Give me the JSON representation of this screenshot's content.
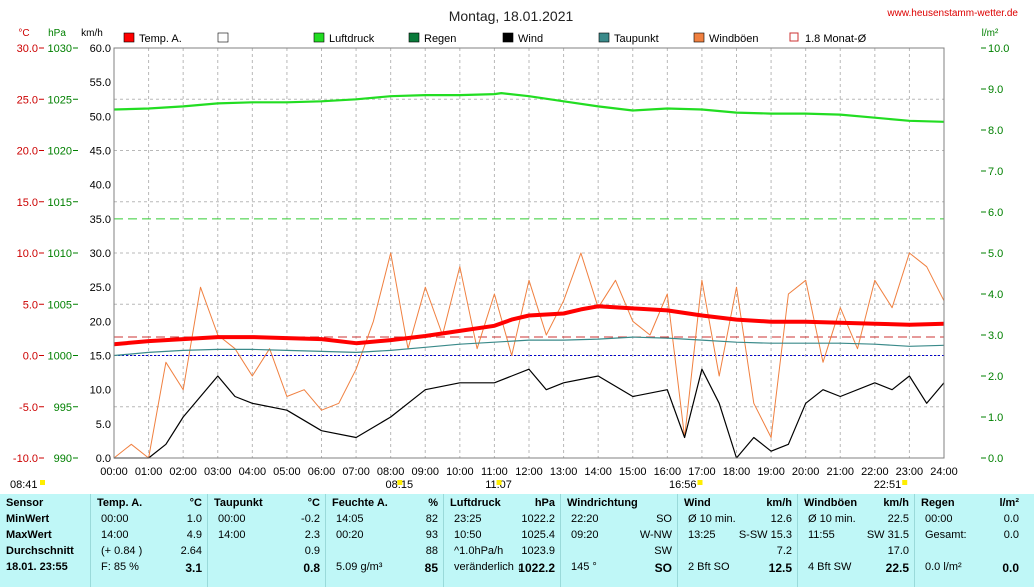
{
  "title": "Montag, 18.01.2021",
  "website": "www.heusenstamm-wetter.de",
  "colors": {
    "temp": "#ff0000",
    "pressure": "#22dd22",
    "rain": "#0a7a3a",
    "wind": "#000000",
    "dewpoint": "#3a8a8a",
    "gust": "#f08040",
    "avg": "#cc3333",
    "humidity": "#ffffff",
    "left_axis": "#cc0000",
    "green_axis": "#008000",
    "table_bg": "#bff7f7"
  },
  "axes": {
    "temp_unit": "°C",
    "pressure_unit": "hPa",
    "wind_unit": "km/h",
    "rain_unit": "l/m²",
    "temp_ticks": [
      "30.0",
      "25.0",
      "20.0",
      "15.0",
      "10.0",
      "5.0",
      "0.0",
      "-5.0",
      "-10.0"
    ],
    "pressure_ticks": [
      "1030",
      "1025",
      "1020",
      "1015",
      "1010",
      "1005",
      "1000",
      "995",
      "990"
    ],
    "wind_ticks": [
      "60.0",
      "55.0",
      "50.0",
      "45.0",
      "40.0",
      "35.0",
      "30.0",
      "25.0",
      "20.0",
      "15.0",
      "10.0",
      "5.0",
      "0.0"
    ],
    "rain_ticks": [
      "10.0",
      "9.0",
      "8.0",
      "7.0",
      "6.0",
      "5.0",
      "4.0",
      "3.0",
      "2.0",
      "1.0",
      "0.0"
    ],
    "time_ticks": [
      "00:00",
      "01:00",
      "02:00",
      "03:00",
      "04:00",
      "05:00",
      "06:00",
      "07:00",
      "08:00",
      "09:00",
      "10:00",
      "11:00",
      "12:00",
      "13:00",
      "14:00",
      "15:00",
      "16:00",
      "17:00",
      "18:00",
      "19:00",
      "20:00",
      "21:00",
      "22:00",
      "23:00",
      "24:00"
    ]
  },
  "time_markers": [
    {
      "label": "08:41",
      "hour": 0.0
    },
    {
      "label": "08:15",
      "hour": 8.25
    },
    {
      "label": "11:07",
      "hour": 11.12
    },
    {
      "label": "16:56",
      "hour": 16.93
    },
    {
      "label": "22:51",
      "hour": 22.85
    }
  ],
  "legend": [
    {
      "label": "Temp. A.",
      "key": "temp"
    },
    {
      "label": "",
      "key": "humidity"
    },
    {
      "label": "Luftdruck",
      "key": "pressure"
    },
    {
      "label": "Regen",
      "key": "rain"
    },
    {
      "label": "Wind",
      "key": "wind"
    },
    {
      "label": "Taupunkt",
      "key": "dewpoint"
    },
    {
      "label": "Windböen",
      "key": "gust"
    },
    {
      "label": "1.8 Monat-Ø",
      "key": "avg"
    }
  ],
  "chart_data": {
    "type": "line",
    "title": "Montag, 18.01.2021",
    "x_range": [
      0,
      24
    ],
    "monthly_avg_temp": 1.8,
    "wind_reference": 35.0,
    "series": [
      {
        "name": "Temp. A.",
        "axis": "temp",
        "ylim": [
          -10,
          30
        ],
        "x": [
          0,
          1,
          2,
          3,
          4,
          5,
          6,
          7,
          8,
          9,
          10,
          11,
          11.5,
          12,
          13,
          13.5,
          14,
          15,
          16,
          17,
          18,
          19,
          20,
          21,
          22,
          23,
          24
        ],
        "values": [
          1.1,
          1.4,
          1.6,
          1.8,
          1.8,
          1.7,
          1.6,
          1.2,
          1.5,
          1.9,
          2.4,
          2.9,
          3.5,
          3.9,
          4.1,
          4.5,
          4.8,
          4.6,
          4.4,
          3.9,
          3.5,
          3.3,
          3.3,
          3.2,
          3.1,
          3.0,
          3.1
        ]
      },
      {
        "name": "Taupunkt",
        "axis": "temp",
        "ylim": [
          -10,
          30
        ],
        "x": [
          0,
          1,
          2,
          3,
          4,
          5,
          6,
          7,
          8,
          9,
          10,
          11,
          12,
          13,
          14,
          15,
          16,
          17,
          18,
          19,
          20,
          21,
          22,
          23,
          24
        ],
        "values": [
          0.0,
          0.3,
          0.5,
          0.6,
          0.6,
          0.5,
          0.4,
          0.3,
          0.5,
          0.8,
          1.1,
          1.3,
          1.5,
          1.5,
          1.6,
          1.8,
          1.7,
          1.5,
          1.3,
          1.2,
          1.2,
          1.2,
          1.1,
          0.9,
          1.0
        ]
      },
      {
        "name": "Luftdruck",
        "axis": "pressure",
        "ylim": [
          990,
          1030
        ],
        "x": [
          0,
          1,
          2,
          3,
          4,
          5,
          6,
          7,
          8,
          9,
          10,
          11,
          11.2,
          12,
          13,
          14,
          15,
          16,
          17,
          18,
          19,
          20,
          21,
          22,
          23,
          24
        ],
        "values": [
          1024.0,
          1024.1,
          1024.3,
          1024.6,
          1024.7,
          1024.7,
          1024.8,
          1025.0,
          1025.3,
          1025.4,
          1025.4,
          1025.5,
          1025.6,
          1025.3,
          1024.8,
          1024.3,
          1023.9,
          1024.1,
          1024.0,
          1023.7,
          1023.6,
          1023.6,
          1023.5,
          1023.2,
          1022.9,
          1022.8
        ]
      },
      {
        "name": "Wind",
        "axis": "wind",
        "ylim": [
          0,
          60
        ],
        "x": [
          0,
          1,
          1.5,
          2,
          2.5,
          3,
          3.5,
          4,
          5,
          6,
          7,
          8,
          9,
          10,
          11,
          11.5,
          12,
          12.5,
          13,
          14,
          15,
          16,
          16.5,
          17,
          17.5,
          18,
          18.5,
          19,
          19.5,
          20,
          20.5,
          21,
          22,
          22.5,
          23,
          23.5,
          24
        ],
        "values": [
          0,
          0,
          2,
          6,
          9,
          12,
          9,
          8,
          7,
          4,
          3,
          6,
          10,
          11,
          11,
          12,
          13,
          10,
          11,
          12,
          9,
          10,
          3,
          13,
          8,
          0,
          3,
          1,
          2,
          8,
          10,
          9,
          11,
          10,
          12,
          8,
          11
        ]
      },
      {
        "name": "Windböen",
        "axis": "wind",
        "ylim": [
          0,
          60
        ],
        "x": [
          0,
          0.5,
          1,
          1.5,
          2,
          2.5,
          3,
          3.5,
          4,
          4.5,
          5,
          5.5,
          6,
          6.5,
          7,
          7.5,
          8,
          8.5,
          9,
          9.5,
          10,
          10.5,
          11,
          11.5,
          12,
          12.5,
          13,
          13.5,
          14,
          14.5,
          15,
          15.5,
          16,
          16.5,
          17,
          17.5,
          18,
          18.5,
          19,
          19.5,
          20,
          20.5,
          21,
          21.5,
          22,
          22.5,
          23,
          23.5,
          24
        ],
        "values": [
          0,
          2,
          0,
          14,
          10,
          25,
          18,
          16,
          12,
          16,
          9,
          10,
          7,
          8,
          13,
          20,
          30,
          16,
          25,
          18,
          28,
          16,
          24,
          15,
          26,
          18,
          23,
          30,
          22,
          26,
          20,
          18,
          24,
          3,
          26,
          12,
          25,
          8,
          3,
          24,
          26,
          14,
          22,
          16,
          26,
          22,
          30,
          28,
          23
        ]
      }
    ]
  },
  "table": {
    "row_labels": [
      "Sensor",
      "MinWert",
      "MaxWert",
      "Durchschnitt",
      "18.01. 23:55"
    ],
    "columns": [
      {
        "header": "Temp. A.",
        "unit": "°C",
        "rows": [
          [
            "00:00",
            "1.0"
          ],
          [
            "14:00",
            "4.9"
          ],
          [
            "(+ 0.84 )",
            "2.64"
          ],
          [
            "F: 85 %",
            "3.1"
          ]
        ]
      },
      {
        "header": "Taupunkt",
        "unit": "°C",
        "rows": [
          [
            "00:00",
            "-0.2"
          ],
          [
            "14:00",
            "2.3"
          ],
          [
            "",
            "0.9"
          ],
          [
            "",
            "0.8"
          ]
        ]
      },
      {
        "header": "Feuchte A.",
        "unit": "%",
        "rows": [
          [
            "14:05",
            "82"
          ],
          [
            "00:20",
            "93"
          ],
          [
            "",
            "88"
          ],
          [
            "5.09 g/m³",
            "85"
          ]
        ]
      },
      {
        "header": "Luftdruck",
        "unit": "hPa",
        "rows": [
          [
            "23:25",
            "1022.2"
          ],
          [
            "10:50",
            "1025.4"
          ],
          [
            "^1.0hPa/h",
            "1023.9"
          ],
          [
            "veränderlich ↓",
            "1022.2"
          ]
        ]
      },
      {
        "header": "Windrichtung",
        "unit": "",
        "rows": [
          [
            "22:20",
            "SO"
          ],
          [
            "09:20",
            "W-NW"
          ],
          [
            "",
            "SW"
          ],
          [
            "145 °",
            "SO"
          ]
        ]
      },
      {
        "header": "Wind",
        "unit": "km/h",
        "rows": [
          [
            "Ø 10 min.",
            "12.6"
          ],
          [
            "13:25",
            "S-SW 15.3"
          ],
          [
            "",
            "7.2"
          ],
          [
            "2 Bft SO",
            "12.5"
          ]
        ]
      },
      {
        "header": "Windböen",
        "unit": "km/h",
        "rows": [
          [
            "Ø 10 min.",
            "22.5"
          ],
          [
            "11:55",
            "SW 31.5"
          ],
          [
            "",
            "17.0"
          ],
          [
            "4 Bft SW",
            "22.5"
          ]
        ]
      },
      {
        "header": "Regen",
        "unit": "l/m²",
        "rows": [
          [
            "00:00",
            "0.0"
          ],
          [
            "Gesamt:",
            "0.0"
          ],
          [
            "",
            ""
          ],
          [
            "0.0 l/m²",
            "0.0"
          ]
        ]
      }
    ]
  }
}
